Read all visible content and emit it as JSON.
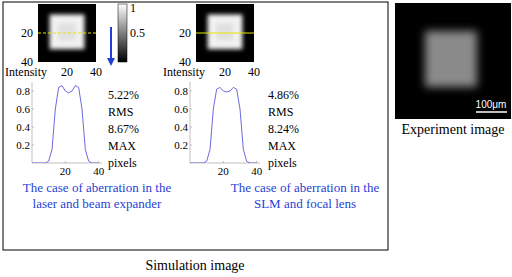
{
  "chart_data": [
    {
      "type": "line",
      "y_label": "Intensity",
      "x": [
        0,
        2,
        4,
        6,
        8,
        10,
        12,
        14,
        16,
        18,
        20,
        22,
        24,
        26,
        28,
        30,
        32,
        34,
        36,
        38,
        40
      ],
      "values": [
        0,
        0,
        0,
        0,
        0,
        0.02,
        0.15,
        0.6,
        0.84,
        0.86,
        0.8,
        0.78,
        0.8,
        0.86,
        0.84,
        0.6,
        0.15,
        0.02,
        0,
        0,
        0
      ],
      "color": "#6b6be0",
      "xlim": [
        0,
        42
      ],
      "ylim": [
        0,
        0.9
      ],
      "xticks": [
        20,
        40
      ],
      "yticks": [
        0.2,
        0.4,
        0.6,
        0.8
      ]
    },
    {
      "type": "line",
      "y_label": "Intensity",
      "x": [
        0,
        2,
        4,
        6,
        8,
        10,
        12,
        14,
        16,
        18,
        20,
        22,
        24,
        26,
        28,
        30,
        32,
        34,
        36,
        38,
        40
      ],
      "values": [
        0,
        0,
        0,
        0,
        0,
        0.02,
        0.15,
        0.6,
        0.82,
        0.84,
        0.8,
        0.79,
        0.8,
        0.84,
        0.82,
        0.6,
        0.15,
        0.02,
        0,
        0,
        0
      ],
      "color": "#6b6be0",
      "xlim": [
        0,
        42
      ],
      "ylim": [
        0,
        0.9
      ],
      "xticks": [
        20,
        40
      ],
      "yticks": [
        0.2,
        0.4,
        0.6,
        0.8
      ]
    }
  ],
  "simulation": {
    "caption": "Simulation image",
    "colorbar": {
      "range": [
        0,
        1
      ],
      "ticks": [
        0.5,
        1
      ]
    },
    "panels": [
      {
        "image": {
          "xlim": [
            0,
            40
          ],
          "ylim": [
            0,
            40
          ],
          "xticks": [
            20,
            40
          ],
          "yticks": [
            20,
            40
          ]
        },
        "profile": {
          "row": 20,
          "line_style": "dashed",
          "color": "#e6e600"
        },
        "stats": [
          "5.22%",
          "RMS",
          "8.67%",
          "MAX",
          "pixels"
        ],
        "caption": [
          "The case of aberration in the",
          "laser and  beam expander"
        ]
      },
      {
        "image": {
          "xlim": [
            0,
            40
          ],
          "ylim": [
            0,
            40
          ],
          "xticks": [
            20,
            40
          ],
          "yticks": [
            20,
            40
          ]
        },
        "profile": {
          "row": 20,
          "line_style": "solid",
          "color": "#e6e600"
        },
        "stats": [
          "4.86%",
          "RMS",
          "8.24%",
          "MAX",
          "pixels"
        ],
        "caption": [
          "The case of aberration in the",
          "SLM and focal lens"
        ]
      }
    ]
  },
  "experiment": {
    "caption": "Experiment image",
    "scale_bar": "100μm"
  }
}
